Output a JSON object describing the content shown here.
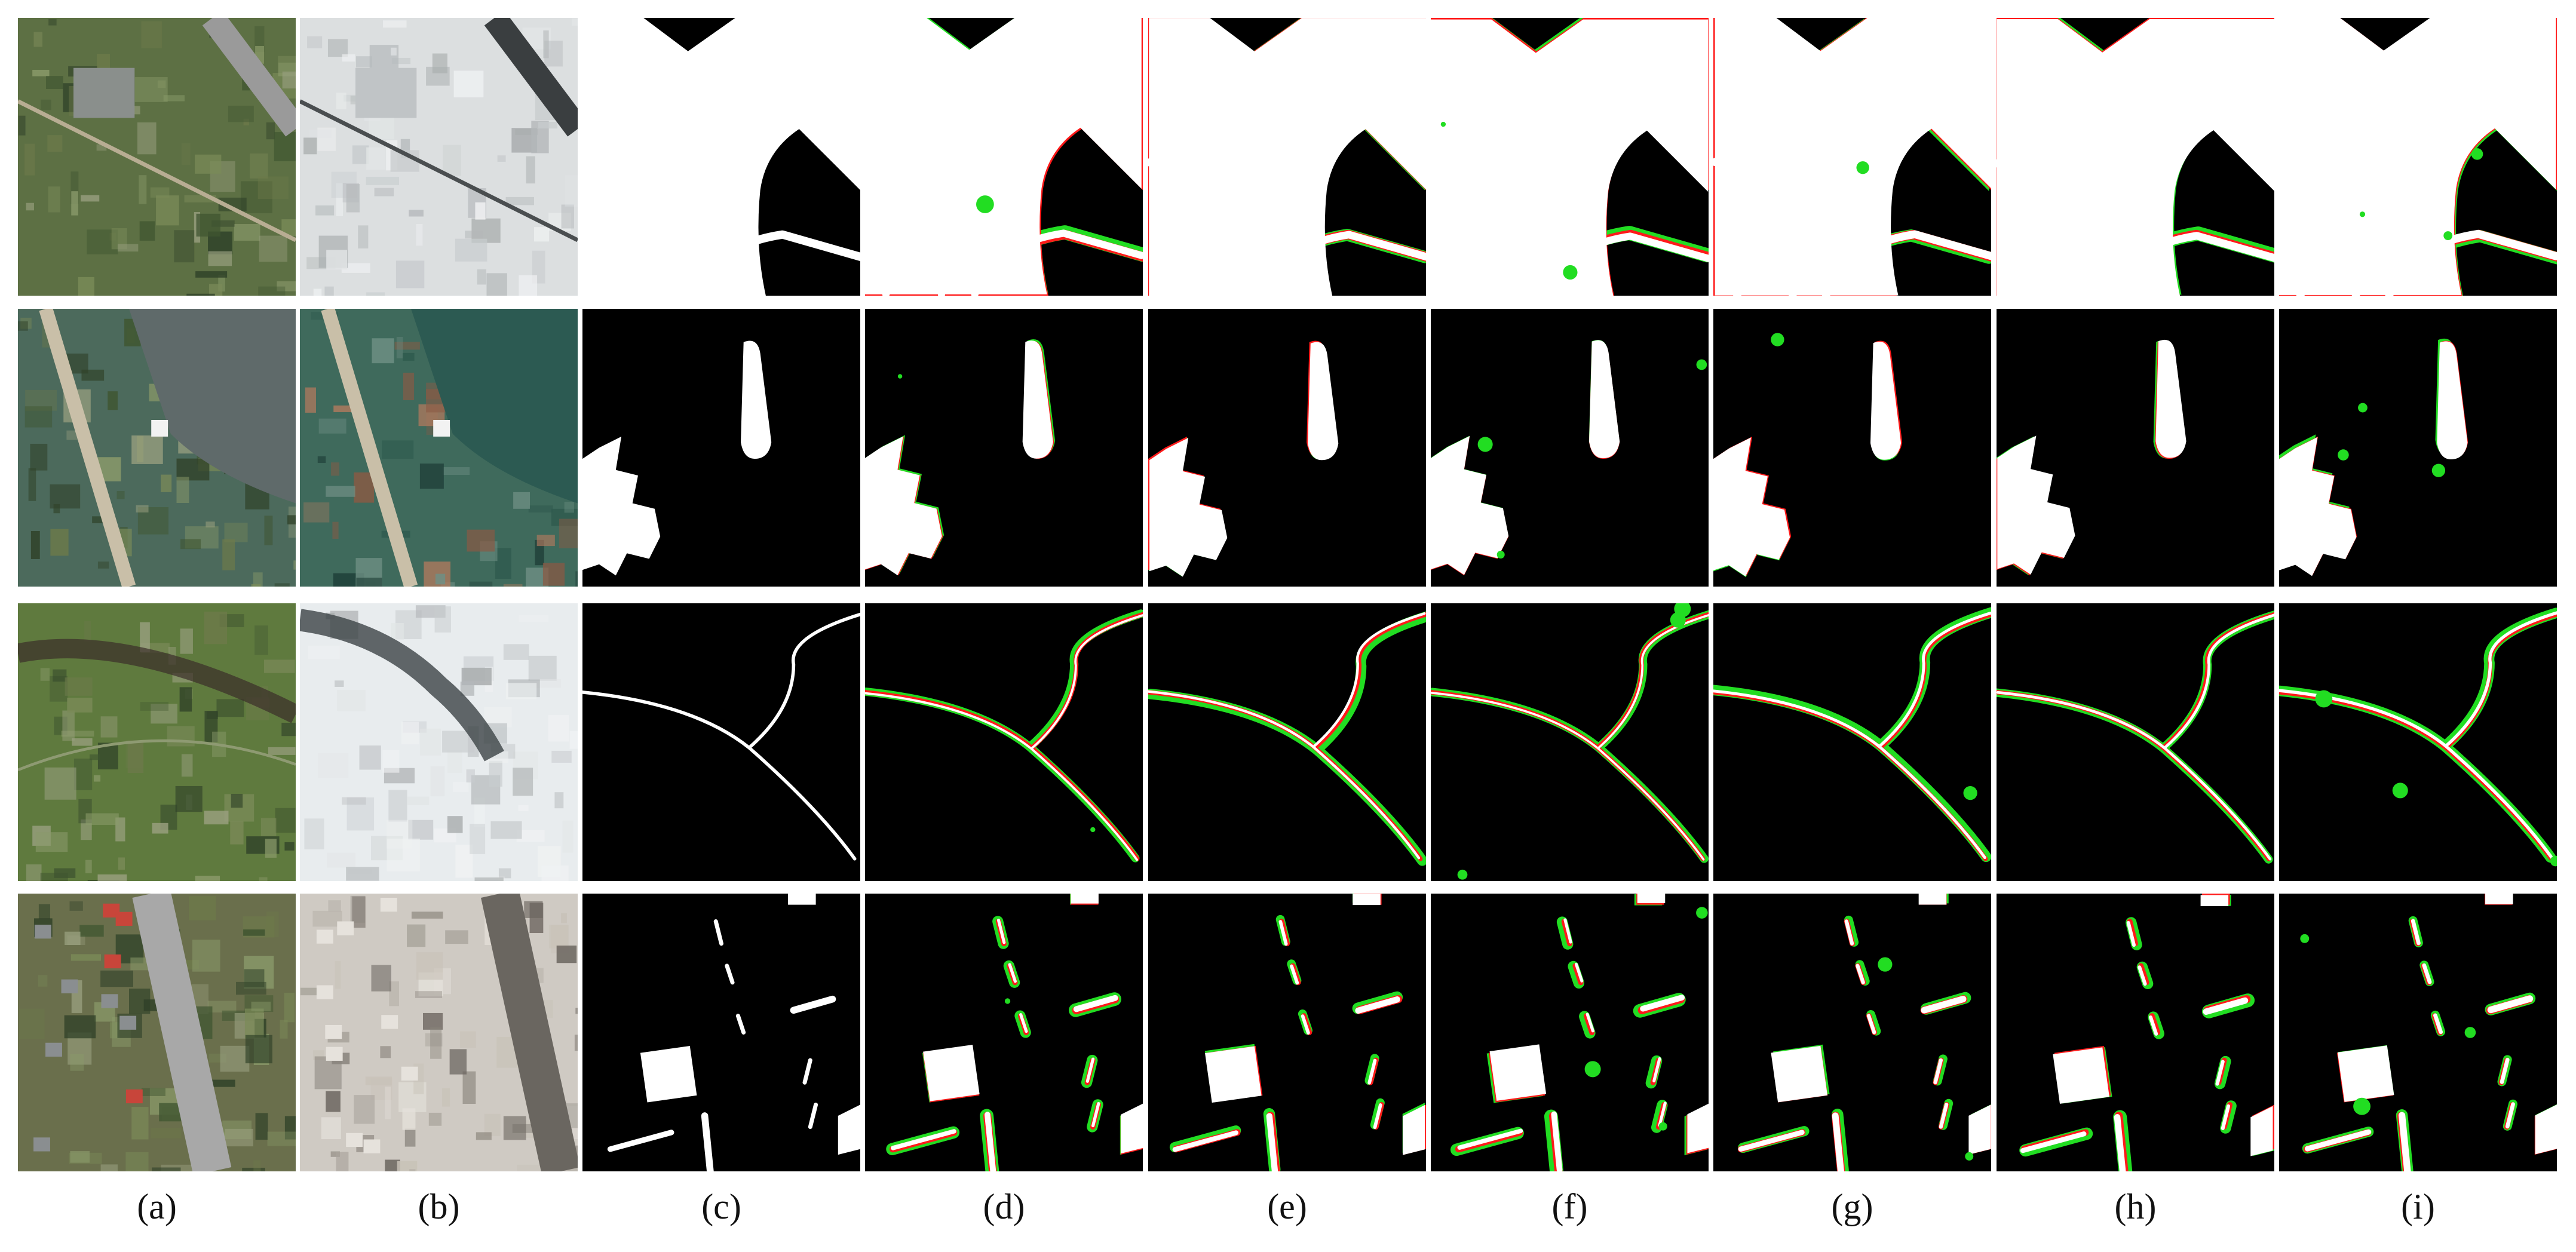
{
  "columns": [
    {
      "id": "a",
      "label": "(a)",
      "kind": "optical"
    },
    {
      "id": "b",
      "label": "(b)",
      "kind": "optical"
    },
    {
      "id": "c",
      "label": "(c)",
      "kind": "ground-truth"
    },
    {
      "id": "d",
      "label": "(d)",
      "kind": "prediction"
    },
    {
      "id": "e",
      "label": "(e)",
      "kind": "prediction"
    },
    {
      "id": "f",
      "label": "(f)",
      "kind": "prediction"
    },
    {
      "id": "g",
      "label": "(g)",
      "kind": "prediction"
    },
    {
      "id": "h",
      "label": "(h)",
      "kind": "prediction"
    },
    {
      "id": "i",
      "label": "(i)",
      "kind": "prediction"
    }
  ],
  "rows": [
    {
      "scene": "roads-buildings",
      "season_a": "summer-green",
      "season_b": "snow"
    },
    {
      "scene": "waterfront-pier",
      "season_a": "summer-water",
      "season_b": "spring-water"
    },
    {
      "scene": "thin-paths",
      "season_a": "summer-grass",
      "season_b": "snow"
    },
    {
      "scene": "highway-houses",
      "season_a": "summer-urban",
      "season_b": "winter-urban"
    }
  ],
  "colors": {
    "background": "#000000",
    "correct": "#ffffff",
    "missed": "#ff1a1a",
    "false_alarm": "#22dd22"
  }
}
